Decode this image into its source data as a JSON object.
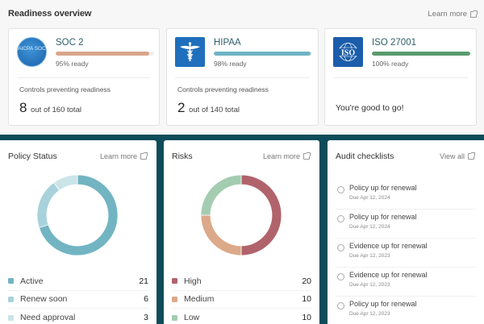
{
  "readiness": {
    "title": "Readiness overview",
    "link_label": "Learn more",
    "link_icon": "external-link-icon",
    "certifications": [
      {
        "name": "SOC 2",
        "logo": "aicpa-soc-logo",
        "logo_text": "AICPA SOC",
        "ready_label": "95% ready",
        "ready_percent": 95,
        "bar_color": "#d9a58c",
        "controls_label": "Controls preventing readiness",
        "controls_count": "8",
        "controls_total": "out of 160 total"
      },
      {
        "name": "HIPAA",
        "logo": "caduceus-logo",
        "ready_label": "98% ready",
        "ready_percent": 98,
        "bar_color": "#6fb3c4",
        "controls_label": "Controls preventing readiness",
        "controls_count": "2",
        "controls_total": "out of 140 total"
      },
      {
        "name": "ISO 27001",
        "logo": "iso-logo",
        "logo_text": "ISO",
        "ready_label": "100% ready",
        "ready_percent": 100,
        "bar_color": "#5a9a6e",
        "message": "You're good to go!"
      }
    ]
  },
  "policy_status": {
    "title": "Policy Status",
    "link_label": "Learn more",
    "items": [
      {
        "label": "Active",
        "value": 21,
        "color": "#72b4c2"
      },
      {
        "label": "Renew soon",
        "value": 6,
        "color": "#a8d2da"
      },
      {
        "label": "Need approval",
        "value": 3,
        "color": "#cae4e8"
      }
    ]
  },
  "risks": {
    "title": "Risks",
    "link_label": "Learn more",
    "items": [
      {
        "label": "High",
        "value": 20,
        "color": "#b1636b"
      },
      {
        "label": "Medium",
        "value": 10,
        "color": "#dca98a"
      },
      {
        "label": "Low",
        "value": 10,
        "color": "#a4ccb0"
      }
    ]
  },
  "audit_checklists": {
    "title": "Audit checklists",
    "link_label": "View all",
    "items": [
      {
        "title": "Policy up for renewal",
        "due": "Due Apr 12, 2024"
      },
      {
        "title": "Policy up for renewal",
        "due": "Due Apr 12, 2024"
      },
      {
        "title": "Evidence up for renewal",
        "due": "Due Apr 12, 2023"
      },
      {
        "title": "Evidence up for renewal",
        "due": "Due Apr 12, 2023"
      },
      {
        "title": "Policy up for renewal",
        "due": "Due Apr 12, 2023"
      }
    ]
  }
}
